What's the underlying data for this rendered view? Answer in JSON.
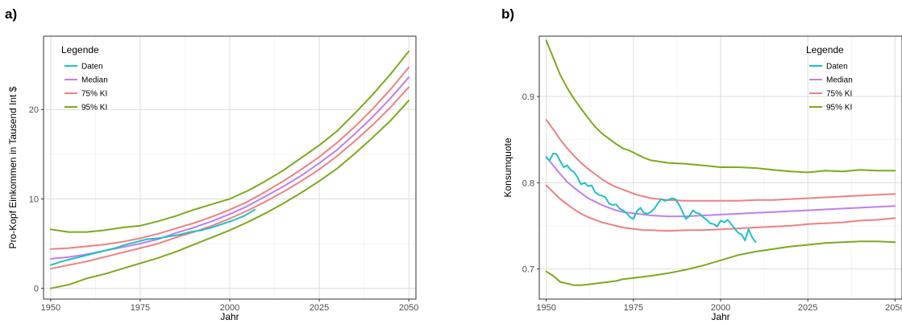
{
  "colors": {
    "Daten": "#1fc0c9",
    "Median": "#bf7ff0",
    "75% KI": "#f08080",
    "95% KI": "#7caa1c"
  },
  "chart_data": [
    {
      "panel": "a)",
      "type": "line",
      "title": "",
      "xlabel": "Jahr",
      "ylabel": "Pro-Kopf Einkommen in Tausend Int $",
      "xlim": [
        1948,
        2052
      ],
      "ylim": [
        -1.2,
        28.2
      ],
      "xticks": [
        1950,
        1975,
        2000,
        2025,
        2050
      ],
      "yticks": [
        0,
        10,
        20
      ],
      "grid": true,
      "legend": {
        "title": "Legende",
        "placement": "top-left",
        "labels": [
          "Daten",
          "Median",
          "75% KI",
          "95% KI"
        ]
      },
      "series": [
        {
          "name": "95% KI",
          "role": "upper",
          "x": [
            1950,
            1955,
            1960,
            1965,
            1970,
            1975,
            1980,
            1985,
            1990,
            1995,
            2000,
            2005,
            2010,
            2015,
            2020,
            2025,
            2030,
            2035,
            2040,
            2045,
            2050
          ],
          "y": [
            6.6,
            6.3,
            6.3,
            6.5,
            6.8,
            7.0,
            7.5,
            8.1,
            8.8,
            9.4,
            10.0,
            10.9,
            12.0,
            13.2,
            14.6,
            16.0,
            17.6,
            19.6,
            21.7,
            24.0,
            26.5
          ]
        },
        {
          "name": "95% KI",
          "role": "lower",
          "x": [
            1950,
            1955,
            1960,
            1965,
            1970,
            1975,
            1980,
            1985,
            1990,
            1995,
            2000,
            2005,
            2010,
            2015,
            2020,
            2025,
            2030,
            2035,
            2040,
            2045,
            2050
          ],
          "y": [
            0.0,
            0.4,
            1.1,
            1.6,
            2.2,
            2.8,
            3.4,
            4.1,
            4.9,
            5.7,
            6.5,
            7.4,
            8.4,
            9.5,
            10.7,
            12.0,
            13.4,
            15.1,
            16.9,
            18.8,
            21.0
          ]
        },
        {
          "name": "75% KI",
          "role": "upper",
          "x": [
            1950,
            1955,
            1960,
            1965,
            1970,
            1975,
            1980,
            1985,
            1990,
            1995,
            2000,
            2005,
            2010,
            2015,
            2020,
            2025,
            2030,
            2035,
            2040,
            2045,
            2050
          ],
          "y": [
            4.4,
            4.5,
            4.7,
            4.9,
            5.2,
            5.6,
            6.1,
            6.7,
            7.3,
            8.0,
            8.8,
            9.7,
            10.8,
            12.0,
            13.3,
            14.7,
            16.3,
            18.1,
            20.1,
            22.3,
            24.7
          ]
        },
        {
          "name": "75% KI",
          "role": "lower",
          "x": [
            1950,
            1955,
            1960,
            1965,
            1970,
            1975,
            1980,
            1985,
            1990,
            1995,
            2000,
            2005,
            2010,
            2015,
            2020,
            2025,
            2030,
            2035,
            2040,
            2045,
            2050
          ],
          "y": [
            2.2,
            2.6,
            3.0,
            3.5,
            4.0,
            4.5,
            5.0,
            5.7,
            6.3,
            7.0,
            7.8,
            8.7,
            9.7,
            10.8,
            12.0,
            13.3,
            14.8,
            16.5,
            18.3,
            20.3,
            22.5
          ]
        },
        {
          "name": "Median",
          "x": [
            1950,
            1955,
            1960,
            1965,
            1970,
            1975,
            1980,
            1985,
            1990,
            1995,
            2000,
            2005,
            2010,
            2015,
            2020,
            2025,
            2030,
            2035,
            2040,
            2045,
            2050
          ],
          "y": [
            3.3,
            3.5,
            3.8,
            4.2,
            4.6,
            5.0,
            5.5,
            6.2,
            6.8,
            7.5,
            8.3,
            9.2,
            10.3,
            11.4,
            12.6,
            14.0,
            15.5,
            17.3,
            19.2,
            21.3,
            23.6
          ]
        },
        {
          "name": "Daten",
          "x": [
            1950,
            1953,
            1956,
            1959,
            1962,
            1965,
            1968,
            1971,
            1974,
            1977,
            1980,
            1983,
            1986,
            1989,
            1992,
            1995,
            1998,
            2001,
            2004,
            2007
          ],
          "y": [
            2.6,
            3.0,
            3.3,
            3.6,
            3.9,
            4.2,
            4.5,
            4.9,
            5.2,
            5.5,
            5.6,
            5.8,
            6.0,
            6.3,
            6.5,
            6.8,
            7.2,
            7.6,
            8.1,
            8.8
          ]
        }
      ]
    },
    {
      "panel": "b)",
      "type": "line",
      "title": "",
      "xlabel": "Jahr",
      "ylabel": "Konsumquote",
      "xlim": [
        1948,
        2052
      ],
      "ylim": [
        0.665,
        0.97
      ],
      "xticks": [
        1950,
        1975,
        2000,
        2025,
        2050
      ],
      "yticks": [
        0.7,
        0.8,
        0.9
      ],
      "grid": true,
      "legend": {
        "title": "Legende",
        "placement": "top-right",
        "labels": [
          "Daten",
          "Median",
          "75% KI",
          "95% KI"
        ]
      },
      "series": [
        {
          "name": "95% KI",
          "role": "upper",
          "x": [
            1950,
            1952,
            1954,
            1956,
            1958,
            1960,
            1962,
            1964,
            1966,
            1968,
            1970,
            1972,
            1974,
            1976,
            1978,
            1980,
            1985,
            1990,
            1995,
            2000,
            2005,
            2010,
            2015,
            2020,
            2025,
            2030,
            2035,
            2040,
            2045,
            2050
          ],
          "y": [
            0.965,
            0.945,
            0.925,
            0.91,
            0.897,
            0.886,
            0.875,
            0.865,
            0.857,
            0.851,
            0.845,
            0.84,
            0.837,
            0.833,
            0.829,
            0.826,
            0.823,
            0.822,
            0.82,
            0.818,
            0.818,
            0.817,
            0.815,
            0.813,
            0.812,
            0.814,
            0.813,
            0.815,
            0.814,
            0.814
          ]
        },
        {
          "name": "95% KI",
          "role": "lower",
          "x": [
            1950,
            1952,
            1954,
            1956,
            1958,
            1960,
            1962,
            1964,
            1966,
            1968,
            1970,
            1972,
            1974,
            1976,
            1978,
            1980,
            1985,
            1990,
            1995,
            2000,
            2005,
            2010,
            2015,
            2020,
            2025,
            2030,
            2035,
            2040,
            2045,
            2050
          ],
          "y": [
            0.697,
            0.692,
            0.685,
            0.683,
            0.681,
            0.681,
            0.682,
            0.683,
            0.684,
            0.685,
            0.686,
            0.688,
            0.689,
            0.69,
            0.691,
            0.692,
            0.695,
            0.699,
            0.704,
            0.71,
            0.716,
            0.72,
            0.723,
            0.726,
            0.728,
            0.73,
            0.731,
            0.732,
            0.732,
            0.731
          ]
        },
        {
          "name": "75% KI",
          "role": "upper",
          "x": [
            1950,
            1952,
            1954,
            1956,
            1958,
            1960,
            1962,
            1964,
            1966,
            1968,
            1970,
            1972,
            1974,
            1976,
            1978,
            1980,
            1985,
            1990,
            1995,
            2000,
            2005,
            2010,
            2015,
            2020,
            2025,
            2030,
            2035,
            2040,
            2045,
            2050
          ],
          "y": [
            0.873,
            0.862,
            0.85,
            0.84,
            0.831,
            0.823,
            0.816,
            0.81,
            0.804,
            0.799,
            0.795,
            0.792,
            0.789,
            0.786,
            0.784,
            0.782,
            0.78,
            0.779,
            0.779,
            0.779,
            0.779,
            0.78,
            0.78,
            0.781,
            0.782,
            0.783,
            0.784,
            0.785,
            0.786,
            0.787
          ]
        },
        {
          "name": "75% KI",
          "role": "lower",
          "x": [
            1950,
            1952,
            1954,
            1956,
            1958,
            1960,
            1962,
            1964,
            1966,
            1968,
            1970,
            1972,
            1974,
            1976,
            1978,
            1980,
            1985,
            1990,
            1995,
            2000,
            2005,
            2010,
            2015,
            2020,
            2025,
            2030,
            2035,
            2040,
            2045,
            2050
          ],
          "y": [
            0.797,
            0.789,
            0.781,
            0.775,
            0.769,
            0.764,
            0.76,
            0.757,
            0.754,
            0.752,
            0.75,
            0.748,
            0.747,
            0.746,
            0.745,
            0.745,
            0.744,
            0.745,
            0.745,
            0.746,
            0.747,
            0.748,
            0.749,
            0.75,
            0.752,
            0.753,
            0.754,
            0.756,
            0.757,
            0.759
          ]
        },
        {
          "name": "Median",
          "x": [
            1950,
            1952,
            1954,
            1956,
            1958,
            1960,
            1962,
            1964,
            1966,
            1968,
            1970,
            1972,
            1974,
            1976,
            1978,
            1980,
            1985,
            1990,
            1995,
            2000,
            2005,
            2010,
            2015,
            2020,
            2025,
            2030,
            2035,
            2040,
            2045,
            2050
          ],
          "y": [
            0.83,
            0.82,
            0.81,
            0.801,
            0.794,
            0.788,
            0.782,
            0.778,
            0.774,
            0.771,
            0.768,
            0.766,
            0.765,
            0.764,
            0.763,
            0.762,
            0.761,
            0.761,
            0.762,
            0.763,
            0.764,
            0.765,
            0.766,
            0.767,
            0.768,
            0.769,
            0.77,
            0.771,
            0.772,
            0.773
          ]
        },
        {
          "name": "Daten",
          "x": [
            1950,
            1951,
            1952,
            1953,
            1954,
            1955,
            1956,
            1957,
            1958,
            1959,
            1960,
            1961,
            1962,
            1963,
            1964,
            1965,
            1966,
            1967,
            1968,
            1969,
            1970,
            1971,
            1972,
            1973,
            1974,
            1975,
            1976,
            1977,
            1978,
            1979,
            1980,
            1981,
            1982,
            1983,
            1984,
            1985,
            1986,
            1987,
            1988,
            1989,
            1990,
            1991,
            1992,
            1993,
            1994,
            1995,
            1996,
            1997,
            1998,
            1999,
            2000,
            2001,
            2002,
            2003,
            2004,
            2005,
            2006,
            2007,
            2008,
            2009,
            2010
          ],
          "y": [
            0.829,
            0.826,
            0.834,
            0.833,
            0.825,
            0.818,
            0.82,
            0.815,
            0.812,
            0.806,
            0.798,
            0.8,
            0.796,
            0.797,
            0.789,
            0.786,
            0.785,
            0.783,
            0.776,
            0.774,
            0.775,
            0.77,
            0.768,
            0.765,
            0.76,
            0.758,
            0.767,
            0.771,
            0.765,
            0.764,
            0.766,
            0.77,
            0.776,
            0.781,
            0.779,
            0.78,
            0.782,
            0.781,
            0.775,
            0.767,
            0.758,
            0.761,
            0.768,
            0.765,
            0.764,
            0.76,
            0.757,
            0.753,
            0.752,
            0.749,
            0.756,
            0.754,
            0.757,
            0.752,
            0.747,
            0.742,
            0.74,
            0.733,
            0.746,
            0.737,
            0.731
          ]
        }
      ]
    }
  ]
}
